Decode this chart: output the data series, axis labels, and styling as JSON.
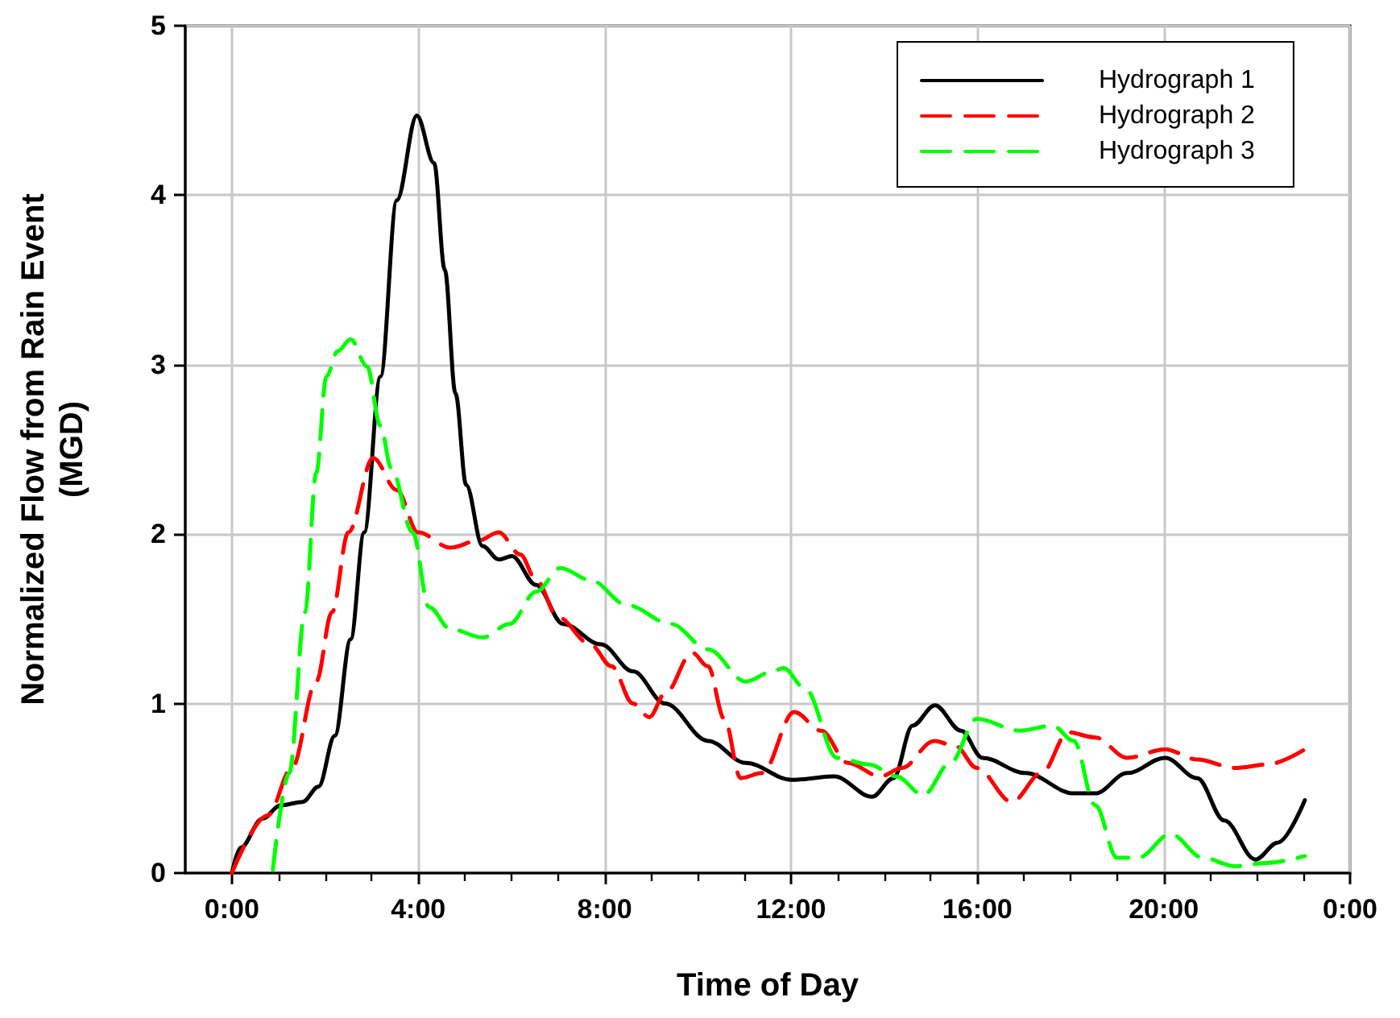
{
  "chart_data": {
    "type": "line",
    "xlabel": "Time of Day",
    "ylabel": "Normalized Flow from Rain Event\n(MGD)",
    "xlim": [
      -1,
      24
    ],
    "xticks": [
      {
        "value": 0,
        "label": "0:00"
      },
      {
        "value": 4,
        "label": "4:00"
      },
      {
        "value": 8,
        "label": "8:00"
      },
      {
        "value": 12,
        "label": "12:00"
      },
      {
        "value": 16,
        "label": "16:00"
      },
      {
        "value": 20,
        "label": "20:00"
      },
      {
        "value": 24,
        "label": "0:00"
      }
    ],
    "ylim": [
      0,
      5
    ],
    "yticks": [
      0,
      1,
      2,
      3,
      4,
      5
    ],
    "grid": true,
    "legend": "top right",
    "marker": "none",
    "series": [
      {
        "name": "Hydrograph 1",
        "color": "#000000",
        "line_style": "solid",
        "x": [
          0,
          0.19,
          0.65,
          1.05,
          1.52,
          1.86,
          2.21,
          2.55,
          2.84,
          3.19,
          3.54,
          3.97,
          4.34,
          4.57,
          4.8,
          5.03,
          5.38,
          5.73,
          6.01,
          6.53,
          7.11,
          7.92,
          8.61,
          9.3,
          10.22,
          11.03,
          12.01,
          12.93,
          13.74,
          14.2,
          14.61,
          15.09,
          15.65,
          16.11,
          17.03,
          18.07,
          18.53,
          19.22,
          20.03,
          20.72,
          21.3,
          21.97,
          22.45,
          23.03
        ],
        "values": [
          0,
          0.15,
          0.32,
          0.4,
          0.42,
          0.51,
          0.81,
          1.38,
          2.01,
          2.93,
          3.97,
          4.47,
          4.19,
          3.56,
          2.83,
          2.29,
          1.93,
          1.85,
          1.87,
          1.7,
          1.47,
          1.35,
          1.19,
          1,
          0.78,
          0.65,
          0.55,
          0.57,
          0.45,
          0.56,
          0.87,
          0.99,
          0.84,
          0.68,
          0.59,
          0.47,
          0.47,
          0.59,
          0.68,
          0.56,
          0.31,
          0.08,
          0.18,
          0.43
        ]
      },
      {
        "name": "Hydrograph 2",
        "color": "#ff0000",
        "line_style": "dashed",
        "x": [
          0,
          0.77,
          1.29,
          1.81,
          2.15,
          2.5,
          3.03,
          3.54,
          4,
          4.69,
          5.27,
          5.73,
          6.19,
          6.53,
          7,
          7.69,
          8.15,
          8.61,
          8.96,
          9.3,
          9.88,
          10.22,
          10.57,
          10.92,
          11.38,
          12.07,
          12.65,
          13.22,
          13.92,
          14.38,
          15.07,
          15.53,
          15.99,
          16.74,
          17.38,
          17.95,
          18.53,
          19.22,
          20.03,
          20.72,
          21.53,
          22.22,
          23.03
        ],
        "values": [
          0,
          0.34,
          0.62,
          1.13,
          1.54,
          2.01,
          2.45,
          2.26,
          2.01,
          1.92,
          1.96,
          2.01,
          1.88,
          1.73,
          1.51,
          1.35,
          1.22,
          1,
          0.92,
          1.06,
          1.3,
          1.22,
          0.91,
          0.56,
          0.59,
          0.95,
          0.84,
          0.65,
          0.57,
          0.62,
          0.78,
          0.75,
          0.62,
          0.42,
          0.59,
          0.83,
          0.8,
          0.68,
          0.73,
          0.67,
          0.62,
          0.64,
          0.73
        ]
      },
      {
        "name": "Hydrograph 3",
        "color": "#00ff00",
        "line_style": "dashed",
        "x": [
          0.88,
          1.23,
          1.57,
          1.81,
          2.03,
          2.27,
          2.55,
          2.9,
          3.19,
          3.42,
          3.88,
          4.23,
          4.69,
          5.38,
          5.96,
          6.53,
          7.05,
          7.69,
          8.49,
          9.42,
          10.22,
          11.03,
          11.61,
          11.84,
          12.3,
          12.99,
          13.68,
          14.26,
          14.84,
          15.42,
          15.99,
          16.91,
          17.61,
          18.07,
          18.53,
          19,
          19.45,
          20.15,
          20.84,
          21.53,
          22.22,
          23.03
        ],
        "values": [
          0.02,
          0.59,
          1.54,
          2.36,
          2.93,
          3.08,
          3.15,
          2.99,
          2.64,
          2.39,
          2.01,
          1.57,
          1.44,
          1.39,
          1.47,
          1.66,
          1.8,
          1.73,
          1.58,
          1.47,
          1.32,
          1.13,
          1.19,
          1.21,
          1.09,
          0.68,
          0.64,
          0.57,
          0.46,
          0.65,
          0.91,
          0.84,
          0.87,
          0.78,
          0.4,
          0.09,
          0.09,
          0.23,
          0.09,
          0.04,
          0.06,
          0.1
        ]
      }
    ]
  }
}
